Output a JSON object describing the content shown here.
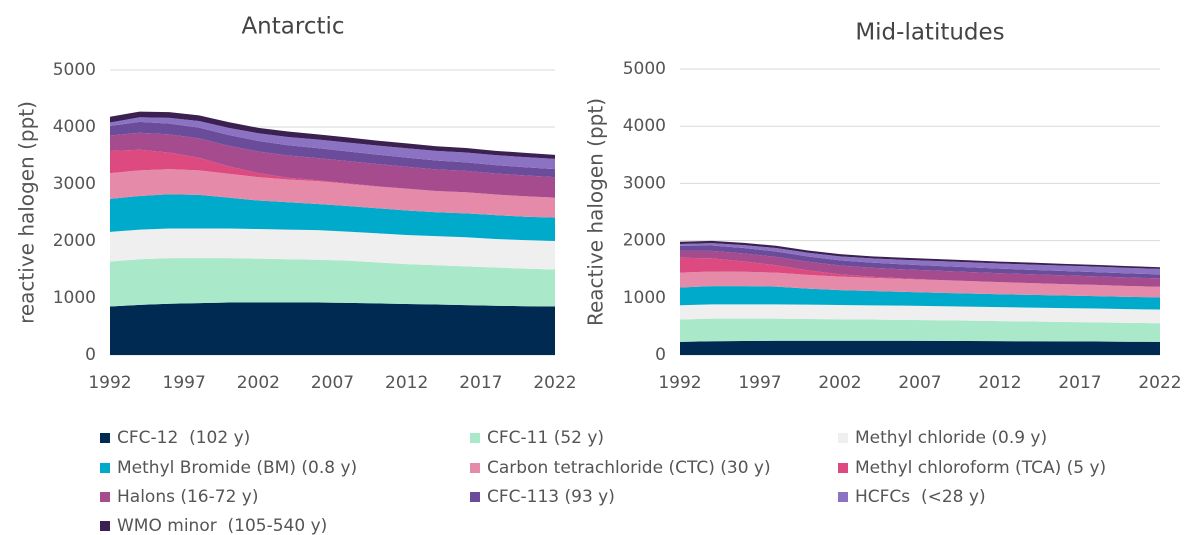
{
  "chart_data": [
    {
      "type": "stacked_area",
      "title": "Antarctic",
      "y_label": "reactive halogen (ppt)",
      "x": [
        1992,
        1994,
        1996,
        1998,
        2000,
        2002,
        2004,
        2006,
        2008,
        2010,
        2012,
        2014,
        2016,
        2018,
        2020,
        2022
      ],
      "xlim": [
        1992,
        2022
      ],
      "xticks": [
        1992,
        1997,
        2002,
        2007,
        2012,
        2017,
        2022
      ],
      "ylim": [
        0,
        5000
      ],
      "yticks": [
        0,
        1000,
        2000,
        3000,
        4000,
        5000
      ],
      "grid": true,
      "series": [
        {
          "name": "CFC-12  (102 y)",
          "color": "#002a52",
          "values": [
            850,
            880,
            900,
            910,
            920,
            920,
            920,
            920,
            915,
            905,
            895,
            885,
            875,
            865,
            855,
            850
          ]
        },
        {
          "name": "CFC-11 (52 y)",
          "color": "#a9e9c9",
          "values": [
            790,
            800,
            800,
            790,
            780,
            770,
            760,
            750,
            740,
            720,
            700,
            690,
            680,
            670,
            660,
            650
          ]
        },
        {
          "name": "Methyl chloride (0.9 y)",
          "color": "#efefef",
          "values": [
            520,
            520,
            520,
            520,
            520,
            520,
            520,
            520,
            510,
            510,
            510,
            510,
            510,
            500,
            500,
            500
          ]
        },
        {
          "name": "Methyl Bromide (BM) (0.8 y)",
          "color": "#00aacb",
          "values": [
            580,
            590,
            600,
            590,
            540,
            500,
            480,
            460,
            450,
            440,
            430,
            420,
            420,
            420,
            410,
            410
          ]
        },
        {
          "name": "Carbon tetrachloride (CTC) (30 y)",
          "color": "#e58aa9",
          "values": [
            450,
            450,
            440,
            430,
            420,
            410,
            400,
            400,
            390,
            380,
            380,
            370,
            370,
            360,
            360,
            350
          ]
        },
        {
          "name": "Methyl chloroform (TCA) (5 y)",
          "color": "#dc4a80",
          "values": [
            390,
            360,
            290,
            220,
            130,
            70,
            30,
            15,
            8,
            5,
            3,
            2,
            0,
            0,
            0,
            0
          ]
        },
        {
          "name": "Halons (16-72 y)",
          "color": "#a74b8f",
          "values": [
            270,
            300,
            320,
            340,
            360,
            380,
            390,
            390,
            390,
            390,
            385,
            380,
            375,
            370,
            365,
            360
          ]
        },
        {
          "name": "CFC-113 (93 y)",
          "color": "#6a4c9b",
          "values": [
            170,
            190,
            190,
            190,
            190,
            185,
            180,
            175,
            170,
            165,
            160,
            155,
            150,
            147,
            143,
            140
          ]
        },
        {
          "name": "HCFCs  (<28 y)",
          "color": "#8c72c2",
          "values": [
            60,
            80,
            100,
            115,
            125,
            135,
            145,
            150,
            155,
            160,
            165,
            170,
            172,
            175,
            178,
            180
          ]
        },
        {
          "name": "WMO minor  (105-540 y)",
          "color": "#3b2152",
          "values": [
            100,
            100,
            100,
            100,
            100,
            95,
            95,
            90,
            90,
            85,
            85,
            80,
            80,
            75,
            75,
            70
          ]
        }
      ]
    },
    {
      "type": "stacked_area",
      "title": "Mid-latitudes",
      "y_label": "Reactive halogen (ppt)",
      "x": [
        1992,
        1994,
        1996,
        1998,
        2000,
        2002,
        2004,
        2006,
        2008,
        2010,
        2012,
        2014,
        2016,
        2018,
        2020,
        2022
      ],
      "xlim": [
        1992,
        2022
      ],
      "xticks": [
        1992,
        1997,
        2002,
        2007,
        2012,
        2017,
        2022
      ],
      "ylim": [
        0,
        5000
      ],
      "yticks": [
        0,
        1000,
        2000,
        3000,
        4000,
        5000
      ],
      "grid": true,
      "series": [
        {
          "name": "CFC-12  (102 y)",
          "color": "#002a52",
          "values": [
            230,
            240,
            245,
            250,
            250,
            250,
            250,
            250,
            248,
            245,
            242,
            240,
            238,
            235,
            232,
            230
          ]
        },
        {
          "name": "CFC-11 (52 y)",
          "color": "#a9e9c9",
          "values": [
            390,
            395,
            390,
            385,
            380,
            375,
            370,
            365,
            360,
            355,
            350,
            345,
            340,
            335,
            330,
            325
          ]
        },
        {
          "name": "Methyl chloride (0.9 y)",
          "color": "#efefef",
          "values": [
            250,
            250,
            250,
            250,
            250,
            250,
            248,
            248,
            246,
            246,
            244,
            244,
            242,
            242,
            240,
            240
          ]
        },
        {
          "name": "Methyl Bromide (BM) (0.8 y)",
          "color": "#00aacb",
          "values": [
            310,
            320,
            320,
            310,
            280,
            260,
            250,
            240,
            235,
            230,
            225,
            222,
            220,
            218,
            215,
            213
          ]
        },
        {
          "name": "Carbon tetrachloride (CTC) (30 y)",
          "color": "#e58aa9",
          "values": [
            260,
            255,
            250,
            245,
            240,
            235,
            230,
            225,
            220,
            215,
            210,
            205,
            200,
            195,
            190,
            185
          ]
        },
        {
          "name": "Methyl chloroform (TCA) (5 y)",
          "color": "#dc4a80",
          "values": [
            260,
            230,
            180,
            130,
            80,
            40,
            20,
            10,
            5,
            3,
            2,
            1,
            0,
            0,
            0,
            0
          ]
        },
        {
          "name": "Halons (16-72 y)",
          "color": "#a74b8f",
          "values": [
            120,
            130,
            140,
            145,
            150,
            155,
            158,
            160,
            160,
            158,
            156,
            154,
            152,
            150,
            148,
            146
          ]
        },
        {
          "name": "CFC-113 (93 y)",
          "color": "#6a4c9b",
          "values": [
            90,
            95,
            95,
            95,
            93,
            90,
            88,
            86,
            84,
            82,
            80,
            78,
            76,
            74,
            72,
            70
          ]
        },
        {
          "name": "HCFCs  (<28 y)",
          "color": "#8c72c2",
          "values": [
            30,
            40,
            50,
            60,
            65,
            70,
            75,
            80,
            85,
            88,
            90,
            92,
            94,
            95,
            96,
            96
          ]
        },
        {
          "name": "WMO minor  (105-540 y)",
          "color": "#3b2152",
          "values": [
            40,
            40,
            40,
            40,
            38,
            38,
            36,
            36,
            35,
            34,
            34,
            33,
            32,
            32,
            31,
            30
          ]
        }
      ]
    }
  ]
}
